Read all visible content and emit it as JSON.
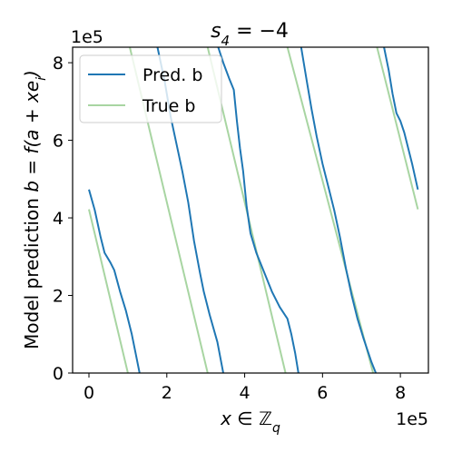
{
  "chart_data": {
    "type": "line",
    "title": "s_4 = -4",
    "title_parts": {
      "var": "s",
      "sub": "4",
      "rest": " = −4"
    },
    "xlabel": "x ∈ ℤ_q",
    "xlabel_parts": {
      "x": "x",
      "in": " ∈ ",
      "Z": "ℤ",
      "sub": "q"
    },
    "ylabel": "Model prediction b = f(a + xe_i)",
    "ylabel_parts": {
      "pre": "Model prediction ",
      "b": "b",
      "eq": " = ",
      "f": "f",
      "paren": "(a + xe",
      "sub": "i",
      "close": ")"
    },
    "x_offset_label": "1e5",
    "y_offset_label": "1e5",
    "xlim": [
      -0.42,
      8.72
    ],
    "ylim": [
      0,
      8.4
    ],
    "xticks": [
      0,
      2,
      4,
      6,
      8
    ],
    "yticks": [
      0,
      2,
      4,
      6,
      8
    ],
    "xtick_labels": [
      "0",
      "2",
      "4",
      "6",
      "8"
    ],
    "ytick_labels": [
      "0",
      "2",
      "4",
      "6",
      "8"
    ],
    "grid": false,
    "legend": {
      "placement": "top-left"
    },
    "series": [
      {
        "name": "Pred. b",
        "color": "#1f77b4",
        "segments": [
          [
            [
              0.0,
              4.73
            ],
            [
              0.15,
              4.2
            ],
            [
              0.3,
              3.5
            ],
            [
              0.4,
              3.1
            ],
            [
              0.55,
              2.85
            ],
            [
              0.65,
              2.65
            ],
            [
              0.8,
              2.1
            ],
            [
              0.95,
              1.6
            ],
            [
              1.1,
              1.0
            ],
            [
              1.2,
              0.5
            ],
            [
              1.3,
              0.0
            ]
          ],
          [
            [
              1.76,
              8.4
            ],
            [
              1.95,
              7.5
            ],
            [
              2.1,
              6.6
            ],
            [
              2.25,
              5.9
            ],
            [
              2.4,
              5.2
            ],
            [
              2.55,
              4.4
            ],
            [
              2.7,
              3.4
            ],
            [
              2.85,
              2.6
            ],
            [
              2.95,
              2.1
            ],
            [
              3.1,
              1.5
            ],
            [
              3.3,
              0.8
            ],
            [
              3.45,
              0.0
            ]
          ],
          [
            [
              3.32,
              8.4
            ],
            [
              3.45,
              8.0
            ],
            [
              3.6,
              7.6
            ],
            [
              3.72,
              7.3
            ],
            [
              3.8,
              6.5
            ],
            [
              3.88,
              5.8
            ],
            [
              3.96,
              5.2
            ],
            [
              4.05,
              4.3
            ],
            [
              4.15,
              3.6
            ],
            [
              4.3,
              3.1
            ],
            [
              4.5,
              2.6
            ],
            [
              4.7,
              2.1
            ],
            [
              4.9,
              1.7
            ],
            [
              5.1,
              1.4
            ],
            [
              5.2,
              1.0
            ],
            [
              5.3,
              0.5
            ],
            [
              5.38,
              0.0
            ]
          ],
          [
            [
              5.45,
              8.4
            ],
            [
              5.6,
              7.5
            ],
            [
              5.72,
              6.8
            ],
            [
              5.85,
              6.1
            ],
            [
              6.0,
              5.4
            ],
            [
              6.15,
              4.8
            ],
            [
              6.3,
              4.2
            ],
            [
              6.45,
              3.5
            ],
            [
              6.6,
              2.7
            ],
            [
              6.75,
              2.0
            ],
            [
              6.9,
              1.4
            ],
            [
              7.05,
              0.9
            ],
            [
              7.25,
              0.3
            ],
            [
              7.37,
              0.0
            ]
          ],
          [
            [
              7.58,
              8.4
            ],
            [
              7.7,
              7.8
            ],
            [
              7.8,
              7.2
            ],
            [
              7.9,
              6.7
            ],
            [
              8.0,
              6.5
            ],
            [
              8.1,
              6.2
            ],
            [
              8.2,
              5.8
            ],
            [
              8.3,
              5.4
            ],
            [
              8.45,
              4.73
            ]
          ]
        ]
      },
      {
        "name": "True b",
        "color": "#a8d5a2",
        "segments": [
          [
            [
              0.0,
              4.22
            ],
            [
              1.0,
              0.0
            ]
          ],
          [
            [
              1.05,
              8.4
            ],
            [
              3.05,
              0.0
            ]
          ],
          [
            [
              3.05,
              8.4
            ],
            [
              5.05,
              0.0
            ]
          ],
          [
            [
              5.1,
              8.4
            ],
            [
              7.3,
              0.0
            ]
          ],
          [
            [
              7.4,
              8.4
            ],
            [
              8.45,
              4.22
            ]
          ]
        ]
      }
    ]
  }
}
